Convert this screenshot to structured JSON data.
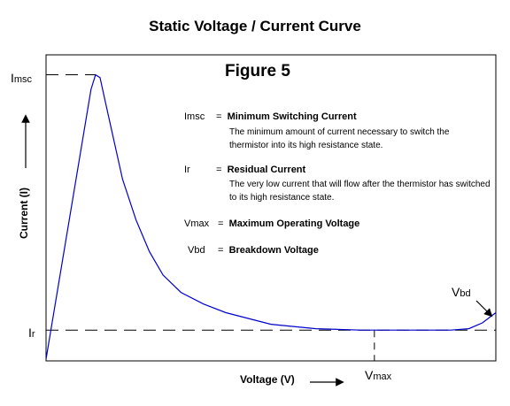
{
  "title": "Static Voltage / Current Curve",
  "figure_label": "Figure  5",
  "chart_data": {
    "type": "line",
    "xlabel": "Voltage (V)",
    "ylabel": "Current (I)",
    "grid": false,
    "legend": "none",
    "curve_color": "#0000cc",
    "series": [
      {
        "points": [
          [
            0.0,
            0.0
          ],
          [
            0.1,
            0.93
          ],
          [
            0.11,
            0.98
          ],
          [
            0.12,
            0.97
          ],
          [
            0.13,
            0.9
          ],
          [
            0.15,
            0.76
          ],
          [
            0.17,
            0.62
          ],
          [
            0.2,
            0.48
          ],
          [
            0.23,
            0.37
          ],
          [
            0.26,
            0.29
          ],
          [
            0.3,
            0.23
          ],
          [
            0.35,
            0.19
          ],
          [
            0.4,
            0.16
          ],
          [
            0.5,
            0.12
          ],
          [
            0.6,
            0.105
          ],
          [
            0.7,
            0.1
          ],
          [
            0.8,
            0.1
          ],
          [
            0.9,
            0.1
          ],
          [
            0.94,
            0.105
          ],
          [
            0.97,
            0.125
          ],
          [
            1.0,
            0.16
          ]
        ]
      }
    ],
    "annotations": {
      "imsc_label": {
        "main": "I",
        "sub": "msc"
      },
      "ir_label": {
        "main": "I",
        "sub": "r"
      },
      "vmax_label": {
        "main": "V",
        "sub": "max"
      },
      "vbd_label": {
        "main": "V",
        "sub": "bd"
      },
      "imsc_level": 0.98,
      "ir_level": 0.1,
      "vmax_x": 0.73
    },
    "key": [
      {
        "symbol": "Imsc",
        "eq": "=",
        "name": "Minimum Switching Current",
        "description": "The minimum amount of current necessary to switch the thermistor into its high resistance state."
      },
      {
        "symbol": "Ir",
        "eq": "=",
        "name": "Residual Current",
        "description": "The very low current that will flow after the thermistor has switched to its high resistance state."
      },
      {
        "symbol": "Vmax",
        "eq": "=",
        "name": "Maximum Operating Voltage",
        "description": ""
      },
      {
        "symbol": "Vbd",
        "eq": "=",
        "name": "Breakdown Voltage",
        "description": ""
      }
    ]
  }
}
